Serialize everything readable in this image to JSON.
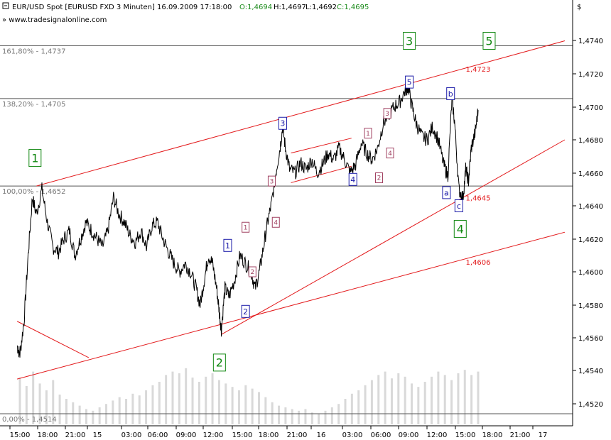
{
  "header": {
    "instrument": "EUR/USD Spot [EURUSD FXD  3 Minuten] 16.09.2009 17:18:00",
    "open": "O:1,4694",
    "high": "H:1,4697",
    "low": "L:1,4692",
    "close": "C:1,4695",
    "website": "www.tradesignalonline.com",
    "currency_symbol": "$"
  },
  "colors": {
    "price": "#000000",
    "channel": "#e31a1c",
    "fib": "#555555",
    "wave_major": "#118811",
    "wave_minor": "#1a1aa8",
    "wave_sub": "#a04060",
    "volume": "#d9d9d9"
  },
  "chart_data": {
    "type": "line",
    "title": "EUR/USD Spot [EURUSD FXD  3 Minuten] 16.09.2009 17:18:00",
    "x_tick_labels": [
      "15:00",
      "18:00",
      "21:00",
      "15",
      "03:00",
      "06:00",
      "09:00",
      "12:00",
      "15:00",
      "18:00",
      "21:00",
      "16",
      "03:00",
      "06:00",
      "09:00",
      "12:00",
      "15:00",
      "18:00",
      "21:00",
      "17"
    ],
    "y_tick_labels": [
      "1,4720",
      "1,4700",
      "1,4680",
      "1,4660",
      "1,4640",
      "1,4620",
      "1,4600",
      "1,4580",
      "1,4560",
      "1,4540",
      "1,4520"
    ],
    "y_ticks": [
      1.472,
      1.47,
      1.468,
      1.466,
      1.464,
      1.462,
      1.46,
      1.458,
      1.456,
      1.454,
      1.452
    ],
    "extra_y_labels": [
      "1,4740"
    ],
    "ylim": [
      1.451,
      1.4762
    ],
    "x_session_range": [
      0,
      19
    ],
    "price_path": [
      [
        -0.1,
        1.4555
      ],
      [
        0.0,
        1.455
      ],
      [
        0.15,
        1.457
      ],
      [
        0.3,
        1.461
      ],
      [
        0.45,
        1.4645
      ],
      [
        0.6,
        1.4635
      ],
      [
        0.8,
        1.465
      ],
      [
        1.0,
        1.463
      ],
      [
        1.2,
        1.4615
      ],
      [
        1.4,
        1.4612
      ],
      [
        1.6,
        1.462
      ],
      [
        1.8,
        1.4625
      ],
      [
        2.0,
        1.461
      ],
      [
        2.2,
        1.462
      ],
      [
        2.4,
        1.463
      ],
      [
        2.6,
        1.4625
      ],
      [
        2.8,
        1.462
      ],
      [
        3.0,
        1.4615
      ],
      [
        3.2,
        1.4625
      ],
      [
        3.4,
        1.4645
      ],
      [
        3.6,
        1.4635
      ],
      [
        3.8,
        1.463
      ],
      [
        4.0,
        1.4622
      ],
      [
        4.2,
        1.4618
      ],
      [
        4.4,
        1.4625
      ],
      [
        4.6,
        1.4615
      ],
      [
        4.8,
        1.4628
      ],
      [
        5.0,
        1.463
      ],
      [
        5.2,
        1.462
      ],
      [
        5.4,
        1.4612
      ],
      [
        5.6,
        1.4605
      ],
      [
        5.8,
        1.46
      ],
      [
        6.0,
        1.4605
      ],
      [
        6.2,
        1.46
      ],
      [
        6.4,
        1.459
      ],
      [
        6.55,
        1.458
      ],
      [
        6.7,
        1.4595
      ],
      [
        6.85,
        1.461
      ],
      [
        7.0,
        1.4605
      ],
      [
        7.15,
        1.459
      ],
      [
        7.25,
        1.4575
      ],
      [
        7.32,
        1.4565
      ],
      [
        7.45,
        1.459
      ],
      [
        7.6,
        1.4585
      ],
      [
        7.8,
        1.4595
      ],
      [
        8.0,
        1.461
      ],
      [
        8.2,
        1.4605
      ],
      [
        8.4,
        1.46
      ],
      [
        8.55,
        1.459
      ],
      [
        8.7,
        1.46
      ],
      [
        8.85,
        1.4615
      ],
      [
        9.0,
        1.463
      ],
      [
        9.15,
        1.4642
      ],
      [
        9.3,
        1.466
      ],
      [
        9.45,
        1.4675
      ],
      [
        9.55,
        1.4688
      ],
      [
        9.65,
        1.4675
      ],
      [
        9.8,
        1.4662
      ],
      [
        10.0,
        1.466
      ],
      [
        10.2,
        1.4666
      ],
      [
        10.4,
        1.4662
      ],
      [
        10.6,
        1.4668
      ],
      [
        10.8,
        1.466
      ],
      [
        11.0,
        1.4665
      ],
      [
        11.2,
        1.4672
      ],
      [
        11.4,
        1.4668
      ],
      [
        11.6,
        1.4675
      ],
      [
        11.8,
        1.4668
      ],
      [
        12.0,
        1.466
      ],
      [
        12.2,
        1.4665
      ],
      [
        12.4,
        1.4678
      ],
      [
        12.6,
        1.4672
      ],
      [
        12.8,
        1.4668
      ],
      [
        13.0,
        1.4675
      ],
      [
        13.2,
        1.469
      ],
      [
        13.4,
        1.4695
      ],
      [
        13.6,
        1.47
      ],
      [
        13.8,
        1.4703
      ],
      [
        14.0,
        1.471
      ],
      [
        14.1,
        1.4712
      ],
      [
        14.25,
        1.47
      ],
      [
        14.4,
        1.469
      ],
      [
        14.6,
        1.4682
      ],
      [
        14.8,
        1.468
      ],
      [
        15.0,
        1.4688
      ],
      [
        15.2,
        1.468
      ],
      [
        15.4,
        1.4665
      ],
      [
        15.55,
        1.4658
      ],
      [
        15.7,
        1.4705
      ],
      [
        15.8,
        1.469
      ],
      [
        15.95,
        1.465
      ],
      [
        16.1,
        1.4645
      ],
      [
        16.2,
        1.4662
      ],
      [
        16.3,
        1.4655
      ],
      [
        16.4,
        1.4675
      ],
      [
        16.55,
        1.4685
      ],
      [
        16.65,
        1.4698
      ]
    ],
    "fibonacci_levels": [
      {
        "label": "161,80% - 1,4737",
        "value": 1.4737
      },
      {
        "label": "138,20% - 1,4705",
        "value": 1.4705
      },
      {
        "label": "100,00% - 1,4652",
        "value": 1.4652
      },
      {
        "label": "0,00% - 1,4514",
        "value": 1.4514
      }
    ],
    "channel_lines": [
      {
        "from": [
          0.6,
          1.4652
        ],
        "to": [
          19.8,
          1.474
        ]
      },
      {
        "from": [
          -0.1,
          1.4535
        ],
        "to": [
          19.8,
          1.4624
        ]
      },
      {
        "from": [
          7.32,
          1.4562
        ],
        "to": [
          19.8,
          1.468
        ]
      },
      {
        "from": [
          -0.1,
          1.457
        ],
        "to": [
          2.5,
          1.4548
        ]
      },
      {
        "from": [
          9.85,
          1.4672
        ],
        "to": [
          12.05,
          1.4681
        ]
      },
      {
        "from": [
          9.85,
          1.4654
        ],
        "to": [
          12.05,
          1.4664
        ]
      }
    ],
    "price_labels": [
      {
        "label": "1,4723",
        "x": 16.2,
        "value": 1.4723
      },
      {
        "label": "1,4645",
        "x": 16.2,
        "value": 1.4645
      },
      {
        "label": "1,4606",
        "x": 16.2,
        "value": 1.4606
      }
    ],
    "wave_labels": [
      {
        "label": "1",
        "level": "major",
        "x": 0.55,
        "value": 1.4669,
        "boxed": true
      },
      {
        "label": "2",
        "level": "major",
        "x": 7.25,
        "value": 1.4545,
        "boxed": true
      },
      {
        "label": "3",
        "level": "major",
        "x": 14.15,
        "value": 1.474,
        "boxed": true
      },
      {
        "label": "4",
        "level": "major",
        "x": 16.0,
        "value": 1.4626,
        "boxed": true
      },
      {
        "label": "5",
        "level": "major",
        "x": 17.05,
        "value": 1.474,
        "boxed": true
      },
      {
        "label": "1",
        "level": "minor",
        "x": 7.55,
        "value": 1.4616,
        "boxed": true
      },
      {
        "label": "2",
        "level": "minor",
        "x": 8.2,
        "value": 1.4576,
        "boxed": true
      },
      {
        "label": "3",
        "level": "minor",
        "x": 9.55,
        "value": 1.469,
        "boxed": true
      },
      {
        "label": "4",
        "level": "minor",
        "x": 12.1,
        "value": 1.4656,
        "boxed": true
      },
      {
        "label": "5",
        "level": "minor",
        "x": 14.15,
        "value": 1.4715,
        "boxed": true
      },
      {
        "label": "a",
        "level": "minor",
        "x": 15.5,
        "value": 1.4648,
        "boxed": true
      },
      {
        "label": "b",
        "level": "minor",
        "x": 15.65,
        "value": 1.4708,
        "boxed": true
      },
      {
        "label": "c",
        "level": "minor",
        "x": 15.95,
        "value": 1.464,
        "boxed": true
      },
      {
        "label": "1",
        "level": "sub",
        "x": 8.2,
        "value": 1.4627,
        "boxed": true
      },
      {
        "label": "2",
        "level": "sub",
        "x": 8.45,
        "value": 1.46,
        "boxed": true
      },
      {
        "label": "3",
        "level": "sub",
        "x": 9.15,
        "value": 1.4655,
        "boxed": true
      },
      {
        "label": "4",
        "level": "sub",
        "x": 9.3,
        "value": 1.463,
        "boxed": true
      },
      {
        "label": "1",
        "level": "sub",
        "x": 12.65,
        "value": 1.4684,
        "boxed": true
      },
      {
        "label": "2",
        "level": "sub",
        "x": 13.05,
        "value": 1.4657,
        "boxed": true
      },
      {
        "label": "3",
        "level": "sub",
        "x": 13.35,
        "value": 1.4696,
        "boxed": true
      },
      {
        "label": "4",
        "level": "sub",
        "x": 13.45,
        "value": 1.4672,
        "boxed": true
      }
    ],
    "volume": {
      "range": [
        0.0,
        16.65
      ],
      "max_value": 1.0,
      "bars": [
        0.55,
        0.45,
        0.62,
        0.48,
        0.4,
        0.52,
        0.35,
        0.3,
        0.26,
        0.22,
        0.18,
        0.16,
        0.2,
        0.24,
        0.28,
        0.32,
        0.3,
        0.36,
        0.34,
        0.4,
        0.46,
        0.5,
        0.58,
        0.62,
        0.6,
        0.66,
        0.55,
        0.5,
        0.56,
        0.6,
        0.52,
        0.48,
        0.44,
        0.4,
        0.46,
        0.42,
        0.38,
        0.32,
        0.26,
        0.22,
        0.2,
        0.18,
        0.16,
        0.18,
        0.14,
        0.12,
        0.16,
        0.2,
        0.24,
        0.3,
        0.36,
        0.4,
        0.46,
        0.52,
        0.58,
        0.62,
        0.54,
        0.6,
        0.56,
        0.48,
        0.44,
        0.5,
        0.56,
        0.62,
        0.58,
        0.52,
        0.6,
        0.64,
        0.58,
        0.62
      ]
    },
    "grid": false,
    "legend": "none"
  }
}
